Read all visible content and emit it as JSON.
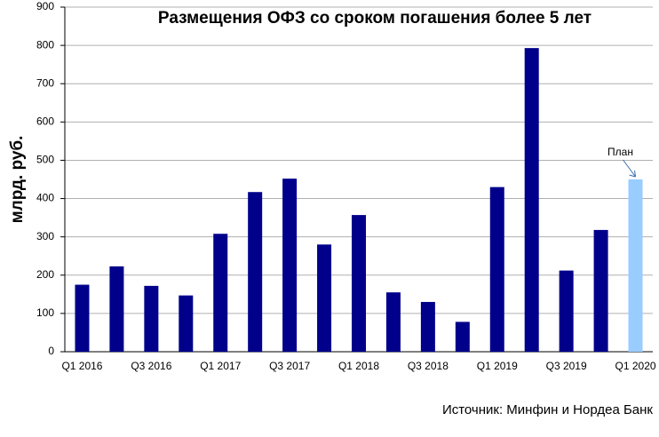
{
  "chart_data": {
    "type": "bar",
    "title": "Размещения ОФЗ со сроком погашения более 5 лет",
    "y_label": "млрд. руб.",
    "source": "Источник:  Минфин  и Нордеа Банк",
    "annotation": "План",
    "categories": [
      "Q1 2016",
      null,
      "Q3 2016",
      null,
      "Q1 2017",
      null,
      "Q3 2017",
      null,
      "Q1 2018",
      null,
      "Q3 2018",
      null,
      "Q1 2019",
      null,
      "Q3 2019",
      null,
      "Q1 2020"
    ],
    "values": [
      175,
      223,
      172,
      147,
      308,
      417,
      452,
      280,
      357,
      155,
      130,
      78,
      430,
      793,
      212,
      318,
      450
    ],
    "colors": [
      "#00008b",
      "#00008b",
      "#00008b",
      "#00008b",
      "#00008b",
      "#00008b",
      "#00008b",
      "#00008b",
      "#00008b",
      "#00008b",
      "#00008b",
      "#00008b",
      "#00008b",
      "#00008b",
      "#00008b",
      "#00008b",
      "#99ccff"
    ],
    "ylim": [
      0,
      900
    ],
    "yticks": [
      0,
      100,
      200,
      300,
      400,
      500,
      600,
      700,
      800,
      900
    ],
    "grid": true
  }
}
